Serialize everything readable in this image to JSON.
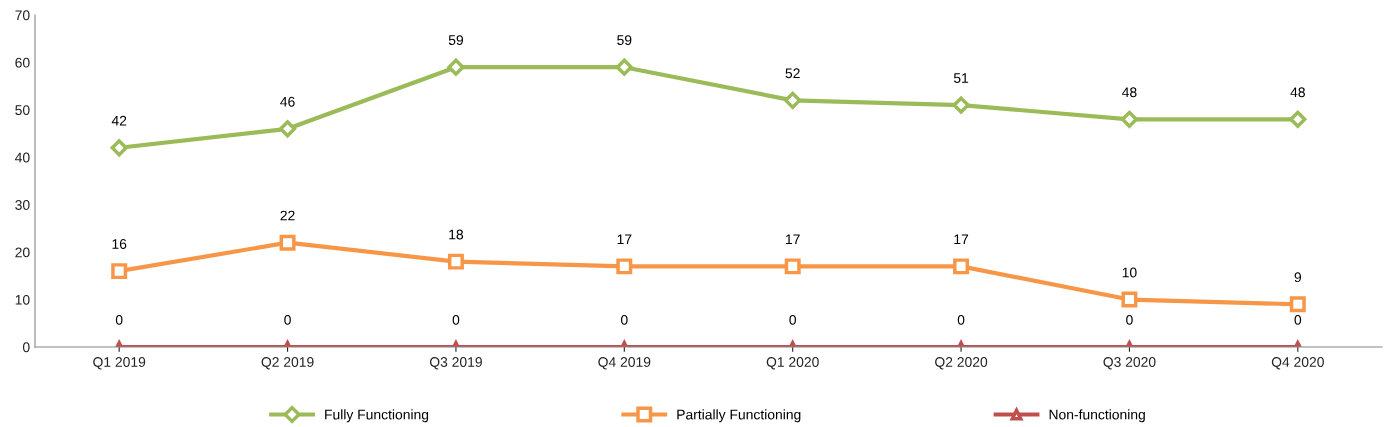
{
  "chart_data": {
    "type": "line",
    "categories": [
      "Q1 2019",
      "Q2 2019",
      "Q3 2019",
      "Q4 2019",
      "Q1 2020",
      "Q2 2020",
      "Q3 2020",
      "Q4 2020"
    ],
    "series": [
      {
        "name": "Fully Functioning",
        "color": "#9bbb59",
        "marker": "diamond",
        "values": [
          42,
          46,
          59,
          59,
          52,
          51,
          48,
          48
        ]
      },
      {
        "name": "Partially Functioning",
        "color": "#f79646",
        "marker": "square",
        "values": [
          16,
          22,
          18,
          17,
          17,
          17,
          10,
          9
        ]
      },
      {
        "name": "Non-functioning",
        "color": "#c0504d",
        "marker": "triangle",
        "values": [
          0,
          0,
          0,
          0,
          0,
          0,
          0,
          0
        ]
      }
    ],
    "ylim": [
      0,
      70
    ],
    "yticks": [
      0,
      10,
      20,
      30,
      40,
      50,
      60,
      70
    ],
    "data_labels": true,
    "legend": "bottom",
    "grid": false
  }
}
